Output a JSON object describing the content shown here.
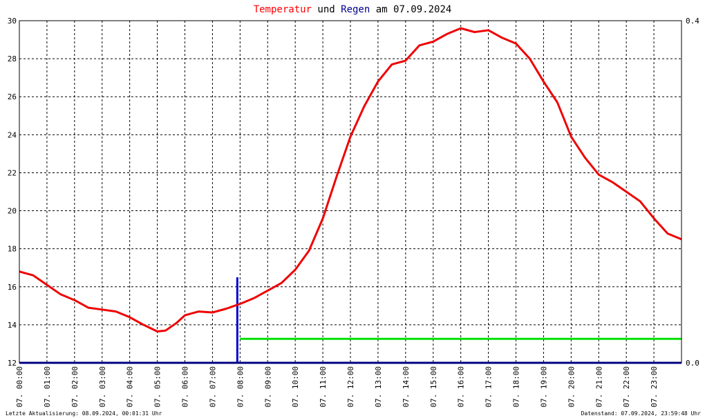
{
  "title": {
    "part1": "Temperatur",
    "part2": " und ",
    "part3": "Regen",
    "part4": " am 07.09.2024",
    "color1": "#ff0000",
    "color2": "#000000",
    "color3": "#00008b",
    "color4": "#000000"
  },
  "footer": {
    "left": "Letzte Aktualisierung: 08.09.2024, 00:01:31 Uhr",
    "right": "Datenstand: 07.09.2024, 23:59:48 Uhr"
  },
  "chart_data": {
    "type": "line",
    "title": "Temperatur und Regen am 07.09.2024",
    "grid": true,
    "x_range": [
      0,
      24
    ],
    "y_left": {
      "ylim": [
        12,
        30
      ],
      "ticks": [
        "12",
        "14",
        "16",
        "18",
        "20",
        "22",
        "24",
        "26",
        "28",
        "30"
      ]
    },
    "y_right": {
      "ylim": [
        0.0,
        0.4
      ],
      "ticks": [
        "0.0",
        "0.4"
      ]
    },
    "x_ticks": [
      "07. 00:00",
      "07. 01:00",
      "07. 02:00",
      "07. 03:00",
      "07. 04:00",
      "07. 05:00",
      "07. 06:00",
      "07. 07:00",
      "07. 08:00",
      "07. 09:00",
      "07. 10:00",
      "07. 11:00",
      "07. 12:00",
      "07. 13:00",
      "07. 14:00",
      "07. 15:00",
      "07. 16:00",
      "07. 17:00",
      "07. 18:00",
      "07. 19:00",
      "07. 20:00",
      "07. 21:00",
      "07. 22:00",
      "07. 23:00"
    ],
    "colors": {
      "temperature": "#ee0000",
      "rain": "#0000cc",
      "rain_total": "#00e000",
      "axis": "#000080"
    },
    "series": [
      {
        "axis": "left",
        "x": [
          0,
          0.5,
          1,
          1.5,
          2,
          2.5,
          3,
          3.5,
          4,
          4.5,
          5,
          5.3,
          5.7,
          6,
          6.5,
          7,
          7.5,
          8,
          8.5,
          9,
          9.5,
          10,
          10.5,
          11,
          11.5,
          12,
          12.5,
          13,
          13.5,
          14,
          14.5,
          15,
          15.5,
          16,
          16.5,
          17,
          17.5,
          18,
          18.5,
          19,
          19.5,
          20,
          20.5,
          21,
          21.5,
          22,
          22.5,
          23,
          23.5,
          24
        ],
        "y": [
          16.8,
          16.6,
          16.1,
          15.6,
          15.3,
          14.9,
          14.8,
          14.7,
          14.4,
          14.0,
          13.65,
          13.7,
          14.1,
          14.5,
          14.7,
          14.65,
          14.85,
          15.1,
          15.4,
          15.8,
          16.2,
          16.9,
          17.9,
          19.6,
          21.8,
          23.9,
          25.5,
          26.8,
          27.7,
          27.9,
          28.7,
          28.9,
          29.3,
          29.6,
          29.4,
          29.5,
          29.1,
          28.8,
          28.0,
          26.8,
          25.7,
          23.9,
          22.8,
          21.9,
          21.5,
          21.0,
          20.5,
          19.6,
          18.8,
          18.5
        ]
      },
      {
        "axis": "right",
        "x": [
          7.9
        ],
        "y": [
          0.1
        ]
      },
      {
        "axis": "right",
        "x": [
          8.0,
          24.0
        ],
        "y": [
          0.028,
          0.028
        ]
      }
    ]
  }
}
